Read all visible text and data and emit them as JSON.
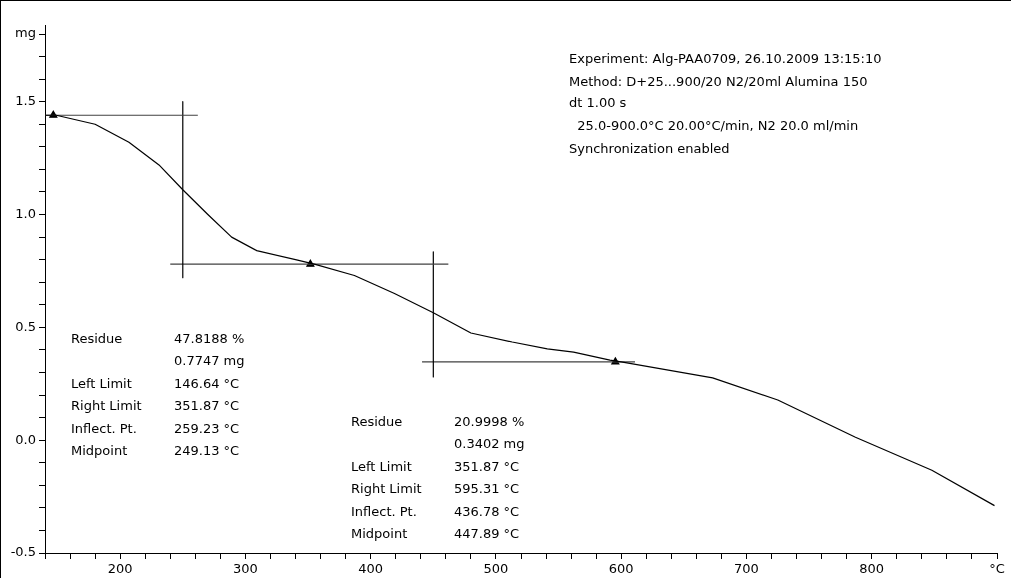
{
  "chart_data": {
    "type": "line",
    "xlim": [
      140,
      900
    ],
    "ylim": [
      -0.5,
      1.84
    ],
    "xticks": [
      {
        "value": 140,
        "label": null
      },
      {
        "value": 160,
        "label": null
      },
      {
        "value": 180,
        "label": null
      },
      200,
      {
        "value": 220,
        "label": null
      },
      {
        "value": 240,
        "label": null
      },
      {
        "value": 260,
        "label": null
      },
      {
        "value": 280,
        "label": null
      },
      300,
      {
        "value": 320,
        "label": null
      },
      {
        "value": 340,
        "label": null
      },
      {
        "value": 360,
        "label": null
      },
      {
        "value": 380,
        "label": null
      },
      400,
      {
        "value": 420,
        "label": null
      },
      {
        "value": 440,
        "label": null
      },
      {
        "value": 460,
        "label": null
      },
      {
        "value": 480,
        "label": null
      },
      500,
      {
        "value": 520,
        "label": null
      },
      {
        "value": 540,
        "label": null
      },
      {
        "value": 560,
        "label": null
      },
      {
        "value": 580,
        "label": null
      },
      600,
      {
        "value": 620,
        "label": null
      },
      {
        "value": 640,
        "label": null
      },
      {
        "value": 660,
        "label": null
      },
      {
        "value": 680,
        "label": null
      },
      700,
      {
        "value": 720,
        "label": null
      },
      {
        "value": 740,
        "label": null
      },
      {
        "value": 760,
        "label": null
      },
      {
        "value": 780,
        "label": null
      },
      800,
      {
        "value": 820,
        "label": null
      },
      {
        "value": 840,
        "label": null
      },
      {
        "value": 860,
        "label": null
      },
      {
        "value": 880,
        "label": null
      },
      {
        "value": 900,
        "label": "°C"
      }
    ],
    "yticks": [
      -0.5,
      {
        "value": -0.4,
        "label": null
      },
      {
        "value": -0.3,
        "label": null
      },
      {
        "value": -0.2,
        "label": null
      },
      {
        "value": -0.1,
        "label": null
      },
      {
        "value": 0,
        "label": "0.0"
      },
      {
        "value": 0.1,
        "label": null
      },
      {
        "value": 0.2,
        "label": null
      },
      {
        "value": 0.3,
        "label": null
      },
      {
        "value": 0.4,
        "label": null
      },
      0.5,
      {
        "value": 0.6,
        "label": null
      },
      {
        "value": 0.7,
        "label": null
      },
      {
        "value": 0.8,
        "label": null
      },
      {
        "value": 0.9,
        "label": null
      },
      {
        "value": 1,
        "label": "1.0"
      },
      {
        "value": 1.1,
        "label": null
      },
      {
        "value": 1.2,
        "label": null
      },
      {
        "value": 1.3,
        "label": null
      },
      {
        "value": 1.4,
        "label": null
      },
      1.5,
      {
        "value": 1.6,
        "label": null
      },
      {
        "value": 1.7,
        "label": null
      },
      {
        "value": 1.8,
        "label": "mg"
      }
    ],
    "grid": false,
    "legend": false,
    "marker": "none",
    "line_style": "solid",
    "series": [
      {
        "type": "line",
        "color": "#000000",
        "x": [
          140,
          149,
          180,
          207,
          231,
          250,
          270,
          289,
          309,
          340,
          355,
          387,
          419,
          450,
          480,
          513,
          541,
          562,
          591,
          600,
          673,
          725,
          787,
          848,
          898
        ],
        "values": [
          1.44,
          1.44,
          1.4,
          1.32,
          1.22,
          1.11,
          1.0,
          0.9,
          0.84,
          0.8,
          0.78,
          0.73,
          0.65,
          0.565,
          0.475,
          0.435,
          0.405,
          0.39,
          0.355,
          0.347,
          0.276,
          0.178,
          0.013,
          -0.133,
          -0.29
        ]
      },
      {
        "type": "line",
        "color": "#404040",
        "x": [
          140,
          262
        ],
        "values": [
          1.44,
          1.44
        ]
      },
      {
        "type": "line",
        "color": "#000000",
        "x": [
          250,
          250
        ],
        "values": [
          1.5,
          0.72
        ]
      },
      {
        "type": "line",
        "color": "#404040",
        "x": [
          240,
          462
        ],
        "values": [
          0.78,
          0.78
        ]
      },
      {
        "type": "line",
        "color": "#000000",
        "x": [
          450,
          450
        ],
        "values": [
          0.835,
          0.28
        ]
      },
      {
        "type": "line",
        "color": "#404040",
        "x": [
          441,
          611
        ],
        "values": [
          0.347,
          0.347
        ]
      },
      {
        "type": "scatter",
        "color": "#000000",
        "marker": "triangle",
        "x": [
          146.64,
          351.87,
          595.31
        ],
        "values": [
          1.44,
          0.78,
          0.347
        ]
      }
    ],
    "annotations": [
      "Experiment: Alg-PAA0709, 26.10.2009 13:15:10",
      "Method: D+25...900/20 N2/20ml Alumina 150",
      "dt 1.00 s",
      "  25.0-900.0°C 20.00°C/min, N2 20.0 ml/min",
      "Synchronization enabled",
      "Residue",
      "47.8188 %",
      "0.7747 mg",
      "Left Limit",
      "146.64 °C",
      "Right Limit",
      "351.87 °C",
      "Inflect. Pt.",
      "259.23 °C",
      "Midpoint",
      "249.13 °C",
      "Residue",
      "20.9998 %",
      "0.3402 mg",
      "Left Limit",
      "351.87 °C",
      "Right Limit",
      "595.31 °C",
      "Inflect. Pt.",
      "436.78 °C",
      "Midpoint",
      "447.89 °C"
    ]
  }
}
